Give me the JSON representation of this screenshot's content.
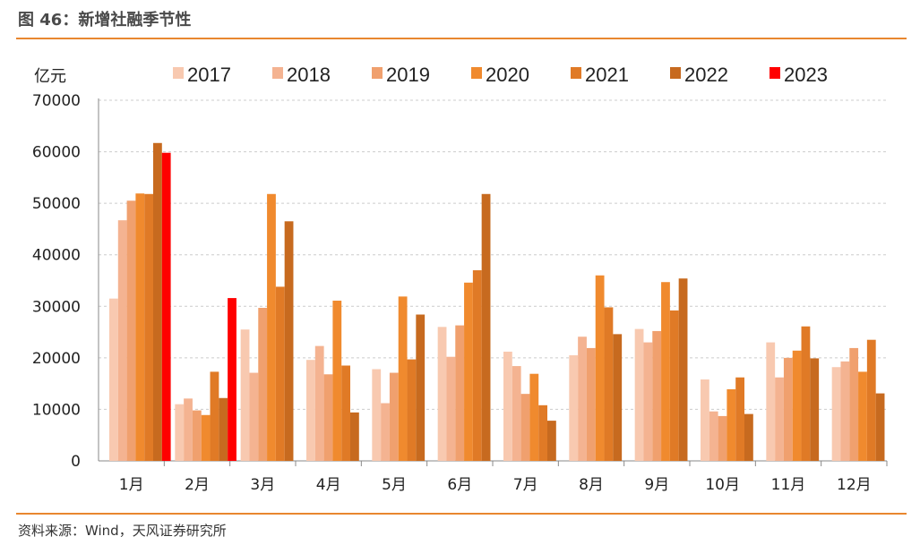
{
  "figure_title": "图 46：新增社融季节性",
  "source_note": "资料来源：Wind，天风证券研究所",
  "colors": {
    "rule": "#e8872f",
    "grid": "#cccccc",
    "series": [
      "#f8c9b0",
      "#f4b391",
      "#f0a06e",
      "#f08a2e",
      "#e07a26",
      "#c76a1f",
      "#ff0000"
    ]
  },
  "chart_data": {
    "type": "bar",
    "unit_label": "亿元",
    "ylim": [
      0,
      70000
    ],
    "yticks": [
      0,
      10000,
      20000,
      30000,
      40000,
      50000,
      60000,
      70000
    ],
    "grid": true,
    "legend_position": "top",
    "categories": [
      "1月",
      "2月",
      "3月",
      "4月",
      "5月",
      "6月",
      "7月",
      "8月",
      "9月",
      "10月",
      "11月",
      "12月"
    ],
    "series": [
      {
        "name": "2017",
        "values": [
          31500,
          11000,
          25500,
          19600,
          17800,
          26000,
          21200,
          20500,
          25600,
          15800,
          23000,
          18200
        ]
      },
      {
        "name": "2018",
        "values": [
          46700,
          12100,
          17100,
          22300,
          11200,
          20200,
          18400,
          24100,
          23000,
          9600,
          16200,
          19300
        ]
      },
      {
        "name": "2019",
        "values": [
          50500,
          9800,
          29700,
          16800,
          17100,
          26300,
          13000,
          21900,
          25200,
          8700,
          20000,
          21900
        ]
      },
      {
        "name": "2020",
        "values": [
          51900,
          8900,
          51800,
          31100,
          31900,
          34600,
          16900,
          36000,
          34700,
          13900,
          21400,
          17300
        ]
      },
      {
        "name": "2021",
        "values": [
          51800,
          17300,
          33800,
          18500,
          19700,
          37000,
          10800,
          29800,
          29200,
          16200,
          26100,
          23500
        ]
      },
      {
        "name": "2022",
        "values": [
          61700,
          12200,
          46500,
          9400,
          28400,
          51800,
          7800,
          24600,
          35400,
          9100,
          19900,
          13100
        ]
      },
      {
        "name": "2023",
        "values": [
          59800,
          31600,
          null,
          null,
          null,
          null,
          null,
          null,
          null,
          null,
          null,
          null
        ]
      }
    ]
  }
}
